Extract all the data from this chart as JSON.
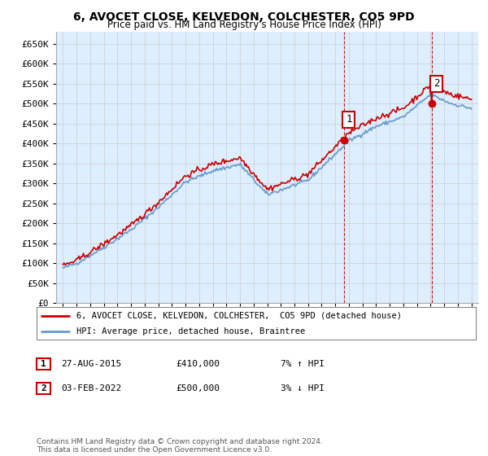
{
  "title": "6, AVOCET CLOSE, KELVEDON, COLCHESTER, CO5 9PD",
  "subtitle": "Price paid vs. HM Land Registry's House Price Index (HPI)",
  "legend_line1": "6, AVOCET CLOSE, KELVEDON, COLCHESTER,  CO5 9PD (detached house)",
  "legend_line2": "HPI: Average price, detached house, Braintree",
  "annotation1_label": "1",
  "annotation1_date": "27-AUG-2015",
  "annotation1_price": "£410,000",
  "annotation1_hpi": "7% ↑ HPI",
  "annotation2_label": "2",
  "annotation2_date": "03-FEB-2022",
  "annotation2_price": "£500,000",
  "annotation2_hpi": "3% ↓ HPI",
  "footer": "Contains HM Land Registry data © Crown copyright and database right 2024.\nThis data is licensed under the Open Government Licence v3.0.",
  "red_color": "#cc0000",
  "blue_color": "#6699cc",
  "vline_color": "#cc0000",
  "background_color": "#ddeeff",
  "grid_color": "#cccccc",
  "ylim": [
    0,
    680000
  ],
  "yticks": [
    0,
    50000,
    100000,
    150000,
    200000,
    250000,
    300000,
    350000,
    400000,
    450000,
    500000,
    550000,
    600000,
    650000
  ],
  "sale1_year": 2015.65,
  "sale1_value": 410000,
  "sale2_year": 2022.09,
  "sale2_value": 500000
}
